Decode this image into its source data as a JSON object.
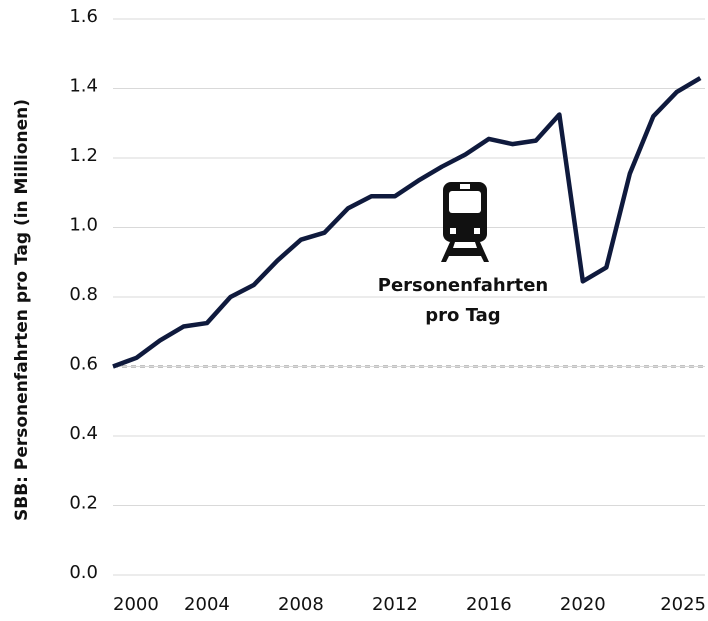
{
  "chart_data": {
    "type": "line",
    "ylabel": "SBB: Personenfahrten pro Tag (in Millionen)",
    "annotation_lines": [
      "Personenfahrten",
      "pro Tag"
    ],
    "x": [
      2000,
      2001,
      2002,
      2003,
      2004,
      2005,
      2006,
      2007,
      2008,
      2009,
      2010,
      2011,
      2012,
      2013,
      2014,
      2015,
      2016,
      2017,
      2018,
      2019,
      2020,
      2021,
      2022,
      2023,
      2024,
      2025
    ],
    "series": [
      {
        "color": "#0f1a3d",
        "values": [
          0.6,
          0.625,
          0.675,
          0.715,
          0.725,
          0.8,
          0.835,
          0.905,
          0.965,
          0.985,
          1.055,
          1.09,
          1.09,
          1.135,
          1.175,
          1.21,
          1.255,
          1.24,
          1.25,
          1.325,
          0.845,
          0.885,
          1.155,
          1.32,
          1.39,
          1.43
        ]
      }
    ],
    "reference_line": 0.6,
    "xlim": [
      2000,
      2025.2
    ],
    "xticks": [
      2000,
      2004,
      2008,
      2012,
      2016,
      2020,
      2025
    ],
    "ylim": [
      0,
      1.6
    ],
    "yticks": [
      {
        "value": 0,
        "label": "0.0"
      },
      0.2,
      0.4,
      0.6,
      0.8,
      {
        "value": 1,
        "label": "1.0"
      },
      1.2,
      1.4,
      1.6
    ],
    "grid": true
  }
}
